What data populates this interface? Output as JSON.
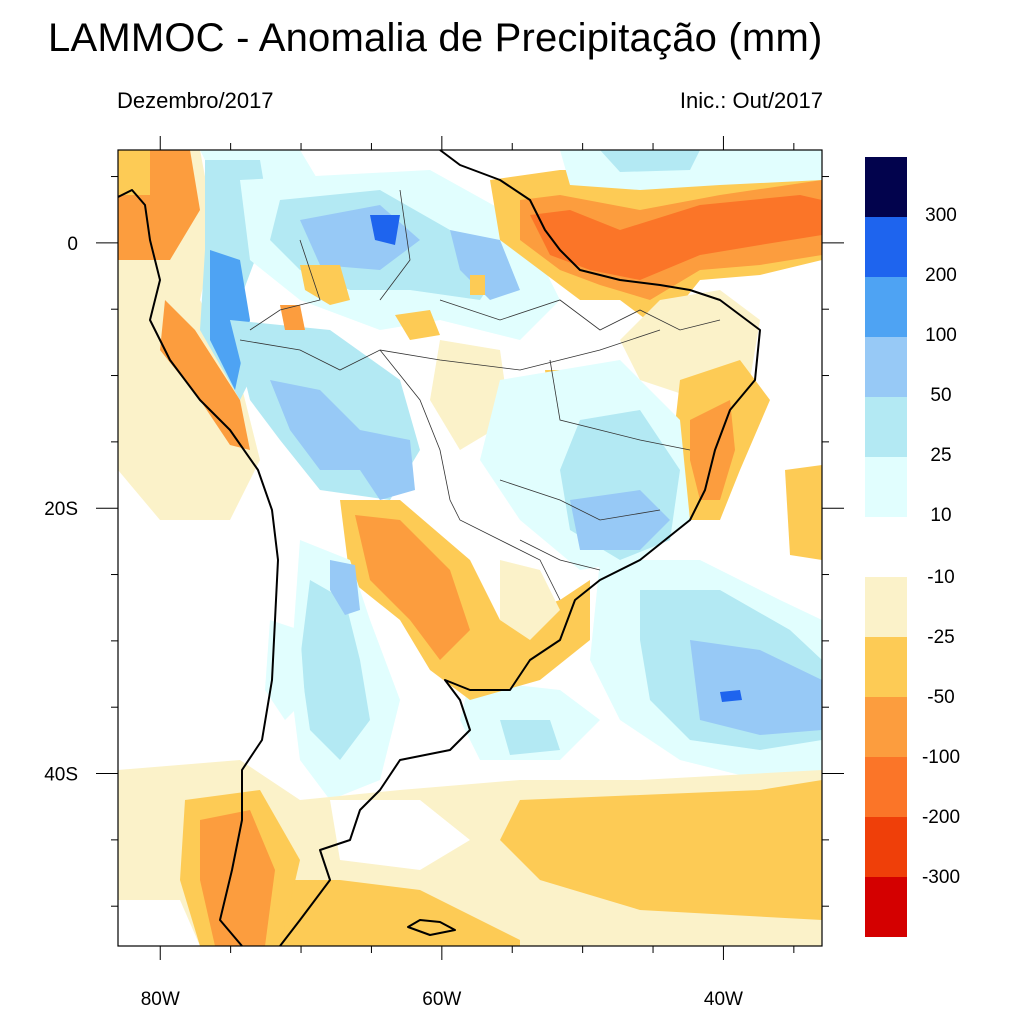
{
  "title": "LAMMOC - Anomalia de Precipitação (mm)",
  "subtitle_left": "Dezembro/2017",
  "subtitle_right": "Inic.: Out/2017",
  "map": {
    "region": "South America",
    "lon_range": [
      -83,
      -33
    ],
    "lat_range": [
      -53,
      7
    ],
    "lon_ticks": [
      {
        "value": -80,
        "label": "80W"
      },
      {
        "value": -60,
        "label": "60W"
      },
      {
        "value": -40,
        "label": "40W"
      }
    ],
    "lat_ticks": [
      {
        "value": 0,
        "label": "0"
      },
      {
        "value": -20,
        "label": "20S"
      },
      {
        "value": -40,
        "label": "40S"
      }
    ]
  },
  "legend": {
    "positive": [
      {
        "color": "#02034d",
        "label": "300"
      },
      {
        "color": "#1e64ee",
        "label": "200"
      },
      {
        "color": "#4ea3f3",
        "label": "100"
      },
      {
        "color": "#97c9f6",
        "label": "50"
      },
      {
        "color": "#b3e9f3",
        "label": "25"
      },
      {
        "color": "#e1fefe",
        "label": "10"
      }
    ],
    "negative": [
      {
        "color": "#fbf2c9",
        "label": "-10"
      },
      {
        "color": "#fdcb55",
        "label": "-25"
      },
      {
        "color": "#fc9d3e",
        "label": "-50"
      },
      {
        "color": "#fb7528",
        "label": "-100"
      },
      {
        "color": "#ef3f09",
        "label": "-200"
      },
      {
        "color": "#d40000",
        "label": "-300"
      }
    ]
  }
}
